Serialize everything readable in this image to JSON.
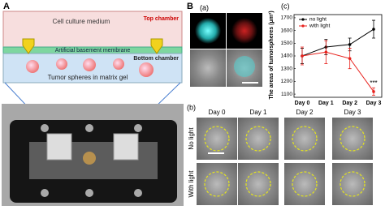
{
  "panel_a": {
    "label": "A",
    "top_medium": "Cell culture medium",
    "top_chamber": "Top chamber",
    "membrane": "Artificial basement membrane",
    "bottom_chamber": "Bottom chamber",
    "spheres": "Tumor spheres in matrix gel"
  },
  "panel_b": {
    "label": "B",
    "sub_a": "(a)",
    "sub_b": "(b)",
    "days": [
      "Day 0",
      "Day 1",
      "Day 2",
      "Day 3"
    ],
    "rows": [
      "No light",
      "With light"
    ]
  },
  "chart_data": {
    "type": "line",
    "title": "(c)",
    "y_label": "The areas of tumorspheres (μm²)",
    "categories": [
      "Day 0",
      "Day 1",
      "Day 2",
      "Day 3"
    ],
    "series": [
      {
        "name": "no light",
        "color": "#000000",
        "values": [
          1400,
          1470,
          1490,
          1610
        ],
        "errors": [
          60,
          60,
          50,
          70
        ]
      },
      {
        "name": "with light",
        "color": "#e8211c",
        "values": [
          1400,
          1430,
          1380,
          1120
        ],
        "errors": [
          70,
          90,
          80,
          30
        ]
      }
    ],
    "annotation": "***",
    "legend": "upper left",
    "ylim": [
      1075,
      1725
    ],
    "yticks": [
      1100,
      1200,
      1300,
      1400,
      1500,
      1600,
      1700
    ]
  }
}
